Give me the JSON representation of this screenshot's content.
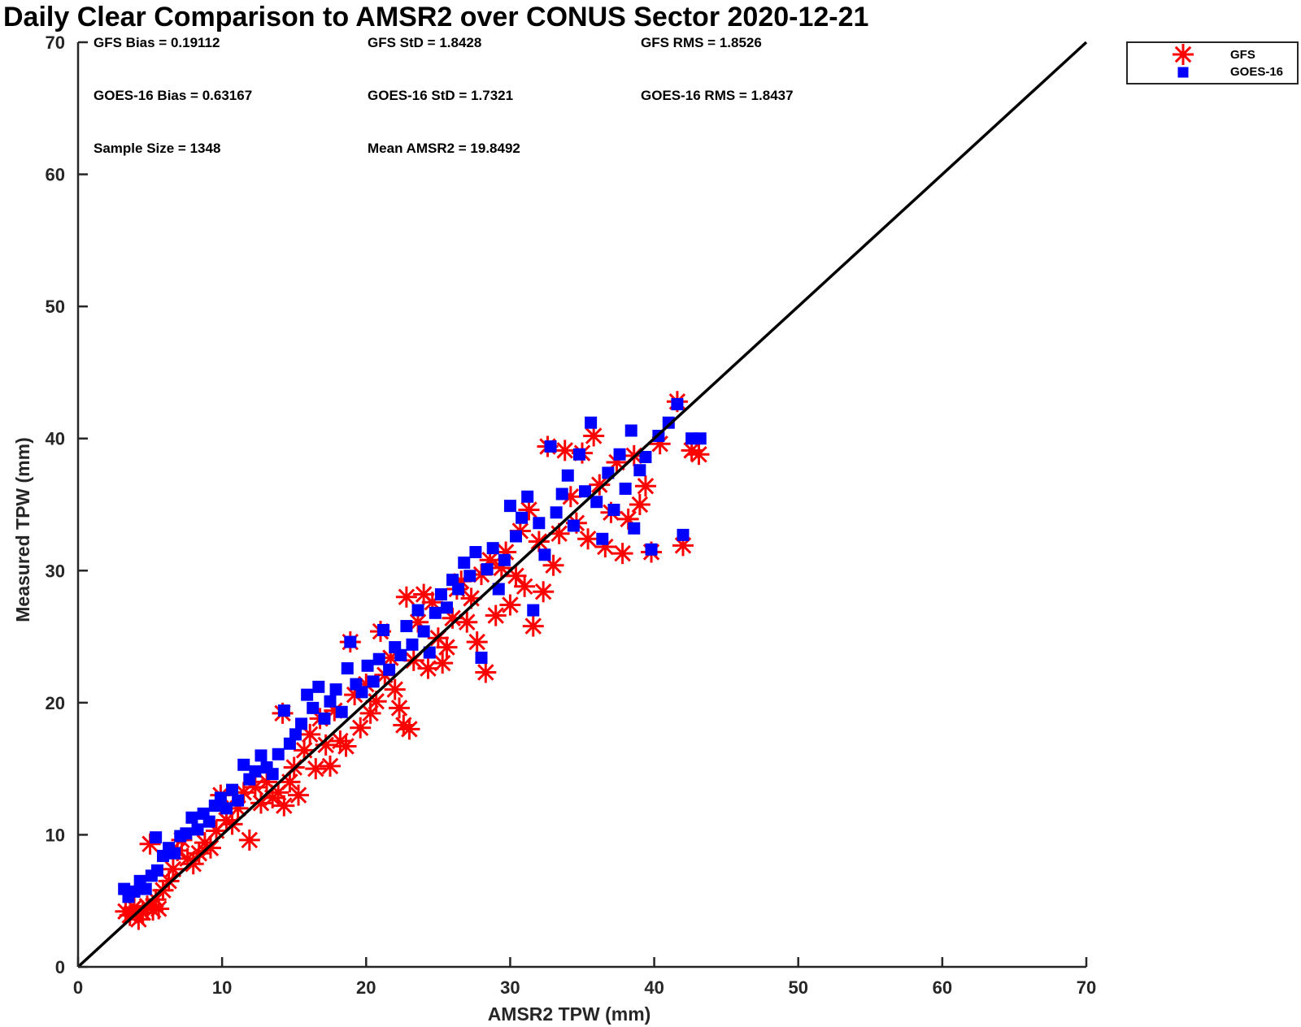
{
  "chart_data": {
    "type": "scatter",
    "title": "Daily Clear Comparison to AMSR2 over CONUS Sector 2020-12-21",
    "xlabel": "AMSR2 TPW (mm)",
    "ylabel": "Measured TPW (mm)",
    "xlim": [
      0,
      70
    ],
    "ylim": [
      0,
      70
    ],
    "xticks": [
      "0",
      "10",
      "20",
      "30",
      "40",
      "50",
      "60",
      "70"
    ],
    "yticks": [
      "0",
      "10",
      "20",
      "30",
      "40",
      "50",
      "60",
      "70"
    ],
    "grid": false,
    "legend_position": "outside-top-right",
    "reference_line": {
      "x": [
        0,
        70
      ],
      "y": [
        0,
        70
      ],
      "color": "#000000"
    },
    "stats": [
      "GFS Bias = 0.19112",
      "GFS StD = 1.8428",
      "GFS RMS = 1.8526",
      "GOES-16 Bias = 0.63167",
      "GOES-16 StD = 1.7321",
      "GOES-16 RMS = 1.8437",
      "Sample Size = 1348",
      "Mean AMSR2 = 19.8492"
    ],
    "series": [
      {
        "name": "GFS",
        "marker": "asterisk",
        "color": "#ff0000",
        "points": [
          [
            3.3,
            4.2
          ],
          [
            3.6,
            3.9
          ],
          [
            3.9,
            4.5
          ],
          [
            4.2,
            3.6
          ],
          [
            4.5,
            4.1
          ],
          [
            4.8,
            4.6
          ],
          [
            5.2,
            4.3
          ],
          [
            5.6,
            4.4
          ],
          [
            5.0,
            9.3
          ],
          [
            5.4,
            5.1
          ],
          [
            5.9,
            5.8
          ],
          [
            6.3,
            6.5
          ],
          [
            6.6,
            7.4
          ],
          [
            6.9,
            8.8
          ],
          [
            7.2,
            9.6
          ],
          [
            7.6,
            8.2
          ],
          [
            8.0,
            7.8
          ],
          [
            8.4,
            8.6
          ],
          [
            8.8,
            9.4
          ],
          [
            9.2,
            9.0
          ],
          [
            9.6,
            10.3
          ],
          [
            9.9,
            13.0
          ],
          [
            10.3,
            11.1
          ],
          [
            10.7,
            10.8
          ],
          [
            11.1,
            12.0
          ],
          [
            11.5,
            13.2
          ],
          [
            11.9,
            9.6
          ],
          [
            12.3,
            13.6
          ],
          [
            12.7,
            12.4
          ],
          [
            13.1,
            14.0
          ],
          [
            13.5,
            12.8
          ],
          [
            13.9,
            13.2
          ],
          [
            14.3,
            12.2
          ],
          [
            14.7,
            14.0
          ],
          [
            15.0,
            15.1
          ],
          [
            15.3,
            13.0
          ],
          [
            14.2,
            19.2
          ],
          [
            15.7,
            16.4
          ],
          [
            16.1,
            17.6
          ],
          [
            16.5,
            15.0
          ],
          [
            16.8,
            18.8
          ],
          [
            17.2,
            16.8
          ],
          [
            17.5,
            15.2
          ],
          [
            17.8,
            19.4
          ],
          [
            18.2,
            17.1
          ],
          [
            18.6,
            16.7
          ],
          [
            18.9,
            24.6
          ],
          [
            19.2,
            20.6
          ],
          [
            19.6,
            18.1
          ],
          [
            20.0,
            21.4
          ],
          [
            20.3,
            19.2
          ],
          [
            20.7,
            20.1
          ],
          [
            21.0,
            25.4
          ],
          [
            21.3,
            22.1
          ],
          [
            21.7,
            23.4
          ],
          [
            22.0,
            21.0
          ],
          [
            22.3,
            19.6
          ],
          [
            22.6,
            18.3
          ],
          [
            23.0,
            18.0
          ],
          [
            22.8,
            28.0
          ],
          [
            23.3,
            23.2
          ],
          [
            23.6,
            26.1
          ],
          [
            24.0,
            28.2
          ],
          [
            24.3,
            22.6
          ],
          [
            24.6,
            27.6
          ],
          [
            25.0,
            24.9
          ],
          [
            25.3,
            23.0
          ],
          [
            25.6,
            24.2
          ],
          [
            26.0,
            26.4
          ],
          [
            26.3,
            28.6
          ],
          [
            26.6,
            29.2
          ],
          [
            27.0,
            26.1
          ],
          [
            27.3,
            27.9
          ],
          [
            27.7,
            24.6
          ],
          [
            28.0,
            29.7
          ],
          [
            28.3,
            22.3
          ],
          [
            28.6,
            30.8
          ],
          [
            29.0,
            26.6
          ],
          [
            29.4,
            30.2
          ],
          [
            29.7,
            31.4
          ],
          [
            30.0,
            27.4
          ],
          [
            30.4,
            29.6
          ],
          [
            30.7,
            33.0
          ],
          [
            31.0,
            28.8
          ],
          [
            31.3,
            34.6
          ],
          [
            31.6,
            25.8
          ],
          [
            32.0,
            32.2
          ],
          [
            32.3,
            28.4
          ],
          [
            32.6,
            39.4
          ],
          [
            33.0,
            30.4
          ],
          [
            33.4,
            32.8
          ],
          [
            33.8,
            39.1
          ],
          [
            34.2,
            35.6
          ],
          [
            34.6,
            33.6
          ],
          [
            35.0,
            38.9
          ],
          [
            35.4,
            32.4
          ],
          [
            35.8,
            40.2
          ],
          [
            36.2,
            36.5
          ],
          [
            36.6,
            31.8
          ],
          [
            37.0,
            34.4
          ],
          [
            37.4,
            38.2
          ],
          [
            37.8,
            31.3
          ],
          [
            38.2,
            33.9
          ],
          [
            38.6,
            38.7
          ],
          [
            39.0,
            35.0
          ],
          [
            39.4,
            36.4
          ],
          [
            39.8,
            31.4
          ],
          [
            40.4,
            39.6
          ],
          [
            41.6,
            42.8
          ],
          [
            42.0,
            31.9
          ],
          [
            42.6,
            39.1
          ],
          [
            43.1,
            38.8
          ]
        ]
      },
      {
        "name": "GOES-16",
        "marker": "square",
        "color": "#0000ff",
        "points": [
          [
            3.2,
            5.9
          ],
          [
            3.5,
            5.3
          ],
          [
            3.9,
            5.7
          ],
          [
            4.3,
            6.5
          ],
          [
            4.7,
            5.9
          ],
          [
            5.1,
            6.9
          ],
          [
            5.5,
            7.3
          ],
          [
            5.9,
            8.4
          ],
          [
            5.4,
            9.8
          ],
          [
            6.3,
            9.0
          ],
          [
            6.7,
            8.6
          ],
          [
            7.1,
            9.9
          ],
          [
            7.5,
            10.1
          ],
          [
            7.9,
            11.3
          ],
          [
            8.3,
            10.4
          ],
          [
            8.7,
            11.6
          ],
          [
            9.1,
            11.0
          ],
          [
            9.5,
            12.2
          ],
          [
            9.9,
            12.8
          ],
          [
            10.3,
            12.0
          ],
          [
            10.7,
            13.4
          ],
          [
            11.1,
            12.6
          ],
          [
            11.5,
            15.3
          ],
          [
            11.9,
            14.2
          ],
          [
            12.3,
            14.8
          ],
          [
            12.7,
            16.0
          ],
          [
            13.1,
            15.1
          ],
          [
            13.5,
            14.6
          ],
          [
            13.9,
            16.1
          ],
          [
            14.3,
            19.4
          ],
          [
            14.7,
            16.9
          ],
          [
            15.1,
            17.6
          ],
          [
            15.5,
            18.4
          ],
          [
            15.9,
            20.6
          ],
          [
            16.3,
            19.6
          ],
          [
            16.7,
            21.2
          ],
          [
            17.1,
            18.8
          ],
          [
            17.5,
            20.1
          ],
          [
            17.9,
            21.0
          ],
          [
            18.3,
            19.3
          ],
          [
            18.7,
            22.6
          ],
          [
            18.9,
            24.6
          ],
          [
            19.3,
            21.4
          ],
          [
            19.7,
            20.8
          ],
          [
            20.1,
            22.8
          ],
          [
            20.5,
            21.6
          ],
          [
            20.9,
            23.3
          ],
          [
            21.2,
            25.5
          ],
          [
            21.6,
            22.5
          ],
          [
            22.0,
            24.2
          ],
          [
            22.4,
            23.6
          ],
          [
            22.8,
            25.8
          ],
          [
            23.2,
            24.4
          ],
          [
            23.6,
            27.0
          ],
          [
            24.0,
            25.4
          ],
          [
            24.4,
            23.8
          ],
          [
            24.8,
            26.8
          ],
          [
            25.2,
            28.2
          ],
          [
            25.6,
            27.2
          ],
          [
            26.0,
            29.3
          ],
          [
            26.4,
            28.6
          ],
          [
            26.8,
            30.6
          ],
          [
            27.2,
            29.6
          ],
          [
            27.6,
            31.4
          ],
          [
            28.0,
            23.4
          ],
          [
            28.4,
            30.1
          ],
          [
            28.8,
            31.7
          ],
          [
            29.2,
            28.6
          ],
          [
            29.6,
            30.8
          ],
          [
            30.0,
            34.9
          ],
          [
            30.4,
            32.6
          ],
          [
            30.8,
            34.0
          ],
          [
            31.2,
            35.6
          ],
          [
            31.6,
            27.0
          ],
          [
            32.0,
            33.6
          ],
          [
            32.4,
            31.2
          ],
          [
            32.8,
            39.4
          ],
          [
            33.2,
            34.4
          ],
          [
            33.6,
            35.8
          ],
          [
            34.0,
            37.2
          ],
          [
            34.4,
            33.4
          ],
          [
            34.8,
            38.8
          ],
          [
            35.2,
            36.0
          ],
          [
            35.6,
            41.2
          ],
          [
            36.0,
            35.2
          ],
          [
            36.4,
            32.4
          ],
          [
            36.8,
            37.4
          ],
          [
            37.2,
            34.6
          ],
          [
            37.6,
            38.8
          ],
          [
            38.0,
            36.2
          ],
          [
            38.4,
            40.6
          ],
          [
            38.6,
            33.2
          ],
          [
            39.0,
            37.6
          ],
          [
            39.4,
            38.6
          ],
          [
            39.8,
            31.6
          ],
          [
            40.3,
            40.2
          ],
          [
            41.0,
            41.2
          ],
          [
            41.6,
            42.6
          ],
          [
            42.0,
            32.7
          ],
          [
            42.6,
            40.0
          ],
          [
            43.2,
            40.0
          ]
        ]
      }
    ]
  }
}
